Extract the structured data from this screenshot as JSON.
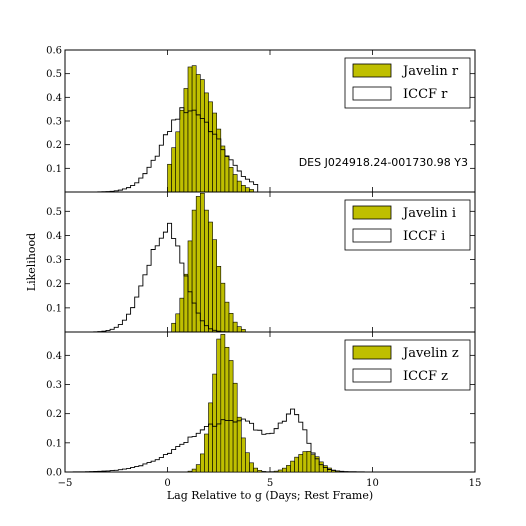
{
  "colors": {
    "javelin_fill": "#bfbf00",
    "javelin_edge": "#000000",
    "iccf_fill": "#ffffff",
    "iccf_edge": "#000000",
    "background": "#ffffff"
  },
  "chart_data": {
    "type": "bar",
    "subtype": "stacked histogram panels with shared x-axis",
    "xlabel": "Lag Relative to g (Days; Rest Frame)",
    "ylabel": "Likelihood",
    "xlim": [
      -5,
      15
    ],
    "xticks": [
      "−5",
      "0",
      "5",
      "10",
      "15"
    ],
    "bin_width": 0.2,
    "panels": [
      {
        "id": "r",
        "ylim": [
          0,
          0.6
        ],
        "yticks": [
          "0.1",
          "0.2",
          "0.3",
          "0.4",
          "0.5",
          "0.6"
        ],
        "legend_placement": "top-right",
        "annotation": "DES J024918.24-001730.98 Y3",
        "series": [
          {
            "name": "Javelin r",
            "style": "filled",
            "peak_x": 1.3,
            "peak_y": 0.52,
            "sigma_left": 0.7,
            "sigma_right": 1.0,
            "x_start": 0.0,
            "x_end": 4.2
          },
          {
            "name": "ICCF r",
            "style": "step",
            "peak_x": 1.0,
            "peak_y": 0.35,
            "sigma_left": 1.2,
            "sigma_right": 1.5,
            "x_start": -3.8,
            "x_end": 4.4
          }
        ]
      },
      {
        "id": "i",
        "ylim": [
          0,
          0.58
        ],
        "yticks": [
          "0.1",
          "0.2",
          "0.3",
          "0.4",
          "0.5"
        ],
        "legend_placement": "top-right",
        "series": [
          {
            "name": "Javelin i",
            "style": "filled",
            "peak_x": 1.6,
            "peak_y": 0.56,
            "sigma_left": 0.55,
            "sigma_right": 0.75,
            "x_start": 0.2,
            "x_end": 3.8
          },
          {
            "name": "ICCF i",
            "style": "step",
            "peak_x": 0.0,
            "peak_y": 0.43,
            "sigma_left": 1.0,
            "sigma_right": 0.8,
            "x_start": -3.7,
            "x_end": 3.2
          }
        ]
      },
      {
        "id": "z",
        "ylim": [
          0,
          0.48
        ],
        "yticks": [
          "0.0",
          "0.1",
          "0.2",
          "0.3",
          "0.4"
        ],
        "legend_placement": "top-right",
        "series": [
          {
            "name": "Javelin z",
            "style": "filled",
            "peak_x": 2.7,
            "peak_y": 0.48,
            "sigma_left": 0.5,
            "sigma_right": 0.6,
            "x_start": 1.1,
            "x_end": 8.4,
            "bump_x": 6.8,
            "bump_y": 0.07,
            "bump_sigma": 0.6
          },
          {
            "name": "ICCF z",
            "style": "step",
            "peak_x": 3.2,
            "peak_y": 0.18,
            "sigma_left": 2.2,
            "sigma_right": 1.8,
            "x_start": -4.7,
            "x_end": 10.0,
            "bump_x": 6.2,
            "bump_y": 0.16,
            "bump_sigma": 0.6
          }
        ]
      }
    ]
  }
}
